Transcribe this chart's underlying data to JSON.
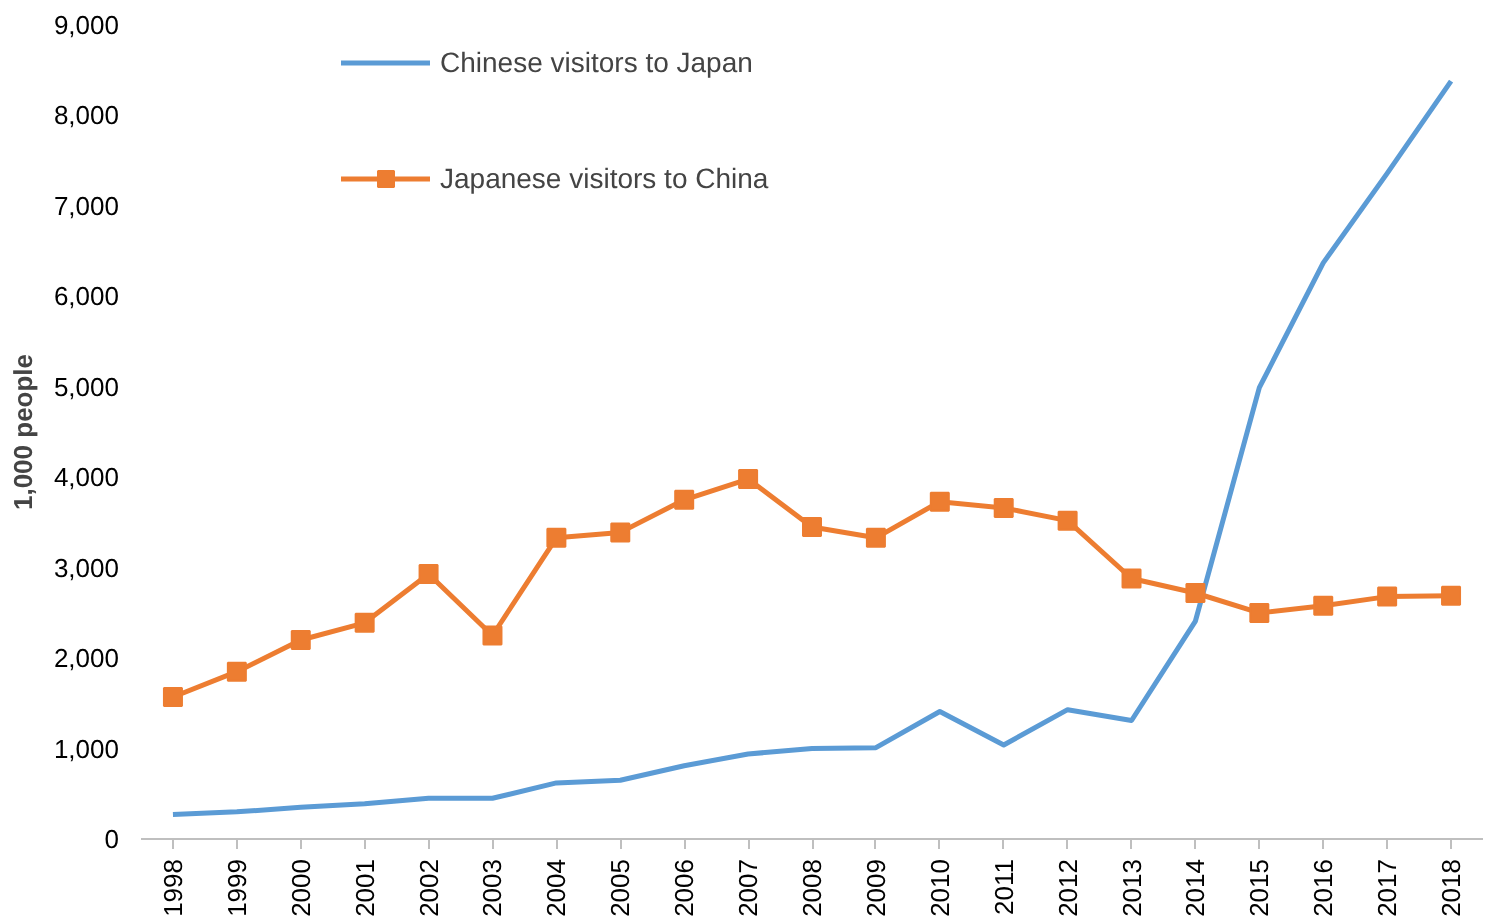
{
  "chart_data": {
    "type": "line",
    "ylabel": "1,000 people",
    "categories": [
      "1998",
      "1999",
      "2000",
      "2001",
      "2002",
      "2003",
      "2004",
      "2005",
      "2006",
      "2007",
      "2008",
      "2009",
      "2010",
      "2011",
      "2012",
      "2013",
      "2014",
      "2015",
      "2016",
      "2017",
      "2018"
    ],
    "series": [
      {
        "name": "Chinese visitors to Japan",
        "color": "#5b9bd5",
        "marker": "none",
        "values": [
          270,
          300,
          350,
          390,
          450,
          450,
          620,
          650,
          810,
          940,
          1000,
          1010,
          1410,
          1040,
          1430,
          1310,
          2410,
          4990,
          6370,
          7360,
          8380
        ]
      },
      {
        "name": "Japanese visitors to China",
        "color": "#ed7d31",
        "marker": "square",
        "values": [
          1570,
          1850,
          2200,
          2390,
          2930,
          2250,
          3330,
          3390,
          3750,
          3980,
          3450,
          3330,
          3730,
          3660,
          3520,
          2880,
          2720,
          2500,
          2580,
          2680,
          2690
        ]
      }
    ],
    "ylim": [
      0,
      9000
    ],
    "yticks": [
      {
        "value": 0,
        "label": "0"
      },
      {
        "value": 1000,
        "label": "1,000"
      },
      {
        "value": 2000,
        "label": "2,000"
      },
      {
        "value": 3000,
        "label": "3,000"
      },
      {
        "value": 4000,
        "label": "4,000"
      },
      {
        "value": 5000,
        "label": "5,000"
      },
      {
        "value": 6000,
        "label": "6,000"
      },
      {
        "value": 7000,
        "label": "7,000"
      },
      {
        "value": 8000,
        "label": "8,000"
      },
      {
        "value": 9000,
        "label": "9,000"
      }
    ],
    "grid": false,
    "legend": "top left",
    "line_style": "solid"
  }
}
